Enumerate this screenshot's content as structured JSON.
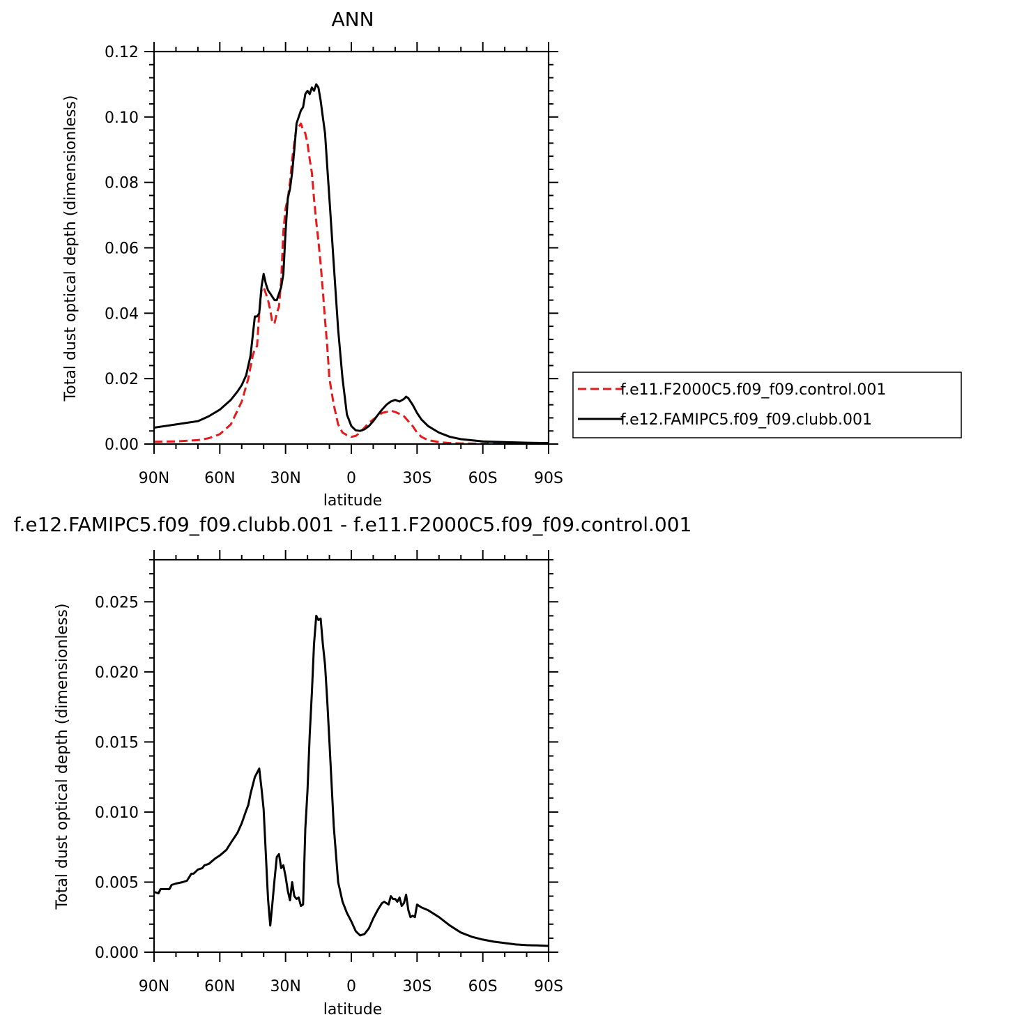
{
  "chart_data": [
    {
      "type": "line",
      "title": "ANN",
      "xlabel": "latitude",
      "ylabel": "Total dust optical depth (dimensionless)",
      "xlim": [
        90,
        -90
      ],
      "ylim": [
        0,
        0.12
      ],
      "x_ticks": [
        90,
        60,
        30,
        0,
        -30,
        -60,
        -90
      ],
      "x_tick_labels": [
        "90N",
        "60N",
        "30N",
        "0",
        "30S",
        "60S",
        "90S"
      ],
      "y_ticks": [
        0,
        0.02,
        0.04,
        0.06,
        0.08,
        0.1,
        0.12
      ],
      "y_tick_labels": [
        "0.00",
        "0.02",
        "0.04",
        "0.06",
        "0.08",
        "0.10",
        "0.12"
      ],
      "legend": "right",
      "series": [
        {
          "name": "f.e11.F2000C5.f09_f09.control.001",
          "color": "#e8191b",
          "dash": "dashed",
          "x": [
            90,
            80,
            70,
            65,
            60,
            55,
            50,
            47,
            45,
            44,
            43,
            42,
            41,
            40,
            39,
            38,
            37,
            36,
            35,
            34,
            33,
            32,
            31,
            30,
            29,
            28,
            27,
            26,
            25,
            24,
            23,
            22,
            21,
            20,
            19,
            18,
            17,
            16,
            15,
            14,
            13,
            12,
            11,
            10,
            8,
            6,
            4,
            2,
            0,
            -2,
            -4,
            -6,
            -8,
            -10,
            -12,
            -14,
            -16,
            -18,
            -20,
            -22,
            -24,
            -26,
            -28,
            -30,
            -32,
            -35,
            -40,
            -45,
            -50,
            -60,
            -70,
            -80,
            -90
          ],
          "y": [
            0.0007,
            0.0008,
            0.0012,
            0.0018,
            0.003,
            0.006,
            0.013,
            0.02,
            0.027,
            0.029,
            0.03,
            0.04,
            0.047,
            0.048,
            0.046,
            0.044,
            0.041,
            0.037,
            0.037,
            0.04,
            0.042,
            0.05,
            0.065,
            0.072,
            0.075,
            0.08,
            0.087,
            0.092,
            0.097,
            0.097,
            0.098,
            0.096,
            0.095,
            0.092,
            0.087,
            0.083,
            0.075,
            0.068,
            0.062,
            0.055,
            0.047,
            0.038,
            0.03,
            0.02,
            0.012,
            0.006,
            0.0035,
            0.0027,
            0.0022,
            0.0025,
            0.0035,
            0.005,
            0.0065,
            0.0075,
            0.0085,
            0.0095,
            0.0098,
            0.0102,
            0.0098,
            0.0092,
            0.0085,
            0.007,
            0.0055,
            0.0035,
            0.0022,
            0.0012,
            0.0006,
            0.0003,
            0.0002,
            0.0001,
            0.0001,
            0.0001,
            0.0001
          ]
        },
        {
          "name": "f.e12.FAMIPC5.f09_f09.clubb.001",
          "color": "#000000",
          "dash": "solid",
          "x": [
            90,
            85,
            80,
            75,
            70,
            65,
            60,
            55,
            52,
            50,
            48,
            46,
            45,
            44,
            43,
            42,
            41,
            40,
            39,
            38,
            37,
            36,
            35,
            34,
            33,
            32,
            31,
            30,
            29,
            28,
            27,
            26,
            25,
            24,
            23,
            22,
            21,
            20,
            19,
            18,
            17,
            16,
            15,
            14,
            13,
            12,
            11,
            10,
            8,
            6,
            4,
            2,
            0,
            -2,
            -4,
            -6,
            -8,
            -10,
            -12,
            -14,
            -16,
            -18,
            -20,
            -22,
            -24,
            -25,
            -26,
            -27,
            -28,
            -30,
            -32,
            -35,
            -40,
            -45,
            -50,
            -60,
            -70,
            -80,
            -90
          ],
          "y": [
            0.005,
            0.0055,
            0.006,
            0.0065,
            0.007,
            0.0085,
            0.0105,
            0.0135,
            0.016,
            0.018,
            0.021,
            0.027,
            0.033,
            0.039,
            0.039,
            0.04,
            0.048,
            0.052,
            0.049,
            0.047,
            0.046,
            0.045,
            0.044,
            0.044,
            0.046,
            0.048,
            0.052,
            0.065,
            0.075,
            0.078,
            0.083,
            0.09,
            0.098,
            0.1,
            0.102,
            0.103,
            0.107,
            0.108,
            0.107,
            0.109,
            0.108,
            0.11,
            0.109,
            0.105,
            0.1,
            0.095,
            0.085,
            0.075,
            0.055,
            0.035,
            0.02,
            0.009,
            0.0055,
            0.0042,
            0.004,
            0.0045,
            0.0055,
            0.007,
            0.0088,
            0.0105,
            0.012,
            0.013,
            0.0135,
            0.013,
            0.0138,
            0.0145,
            0.014,
            0.013,
            0.012,
            0.0095,
            0.0075,
            0.0055,
            0.0035,
            0.0022,
            0.0015,
            0.0008,
            0.0006,
            0.0004,
            0.0003
          ]
        }
      ]
    },
    {
      "type": "line",
      "title": "f.e12.FAMIPC5.f09_f09.clubb.001 - f.e11.F2000C5.f09_f09.control.001",
      "xlabel": "latitude",
      "ylabel": "Total dust optical depth (dimensionless)",
      "xlim": [
        90,
        -90
      ],
      "ylim": [
        0,
        0.028
      ],
      "x_ticks": [
        90,
        60,
        30,
        0,
        -30,
        -60,
        -90
      ],
      "x_tick_labels": [
        "90N",
        "60N",
        "30N",
        "0",
        "30S",
        "60S",
        "90S"
      ],
      "y_ticks": [
        0,
        0.005,
        0.01,
        0.015,
        0.02,
        0.025
      ],
      "y_tick_labels": [
        "0.000",
        "0.005",
        "0.010",
        "0.015",
        "0.020",
        "0.025"
      ],
      "series": [
        {
          "color": "#000000",
          "dash": "solid",
          "x": [
            90,
            88,
            87,
            85,
            83,
            82,
            80,
            77,
            75,
            73,
            72,
            70,
            68,
            67,
            65,
            62,
            60,
            57,
            55,
            52,
            50,
            48,
            47,
            46,
            44,
            43,
            42,
            41,
            40,
            38,
            37,
            36,
            35,
            34,
            33,
            32,
            31,
            30,
            29,
            28,
            27,
            26,
            25,
            24,
            23,
            22,
            21,
            20,
            19,
            18,
            17,
            16,
            15,
            14,
            13,
            12,
            11,
            10,
            9,
            8,
            6,
            4,
            2,
            0,
            -2,
            -4,
            -6,
            -8,
            -10,
            -12,
            -14,
            -15,
            -16,
            -17,
            -18,
            -19,
            -20,
            -21,
            -22,
            -23,
            -24,
            -25,
            -26,
            -27,
            -28,
            -29,
            -30,
            -32,
            -35,
            -40,
            -45,
            -50,
            -55,
            -60,
            -65,
            -70,
            -75,
            -80,
            -85,
            -90
          ],
          "y": [
            0.0043,
            0.0042,
            0.0045,
            0.0045,
            0.0045,
            0.0048,
            0.0049,
            0.005,
            0.0051,
            0.0056,
            0.0056,
            0.0059,
            0.006,
            0.0062,
            0.0063,
            0.0067,
            0.0069,
            0.0073,
            0.0078,
            0.0085,
            0.0092,
            0.0101,
            0.0105,
            0.0113,
            0.0125,
            0.0128,
            0.0131,
            0.0117,
            0.0102,
            0.0038,
            0.0019,
            0.0035,
            0.0052,
            0.0068,
            0.007,
            0.006,
            0.0062,
            0.0054,
            0.0044,
            0.0037,
            0.005,
            0.004,
            0.0038,
            0.0039,
            0.0033,
            0.0034,
            0.0088,
            0.0115,
            0.0155,
            0.0185,
            0.022,
            0.024,
            0.0237,
            0.0238,
            0.022,
            0.0205,
            0.018,
            0.015,
            0.012,
            0.009,
            0.005,
            0.0036,
            0.0028,
            0.0022,
            0.0015,
            0.0012,
            0.0013,
            0.0017,
            0.0024,
            0.003,
            0.0035,
            0.0036,
            0.0035,
            0.0034,
            0.004,
            0.0038,
            0.0038,
            0.0036,
            0.0039,
            0.0033,
            0.0035,
            0.0041,
            0.003,
            0.0025,
            0.0026,
            0.0025,
            0.0034,
            0.0032,
            0.003,
            0.0025,
            0.0019,
            0.0014,
            0.0011,
            0.0009,
            0.00075,
            0.00065,
            0.00055,
            0.0005,
            0.00048,
            0.00045
          ]
        }
      ]
    }
  ]
}
